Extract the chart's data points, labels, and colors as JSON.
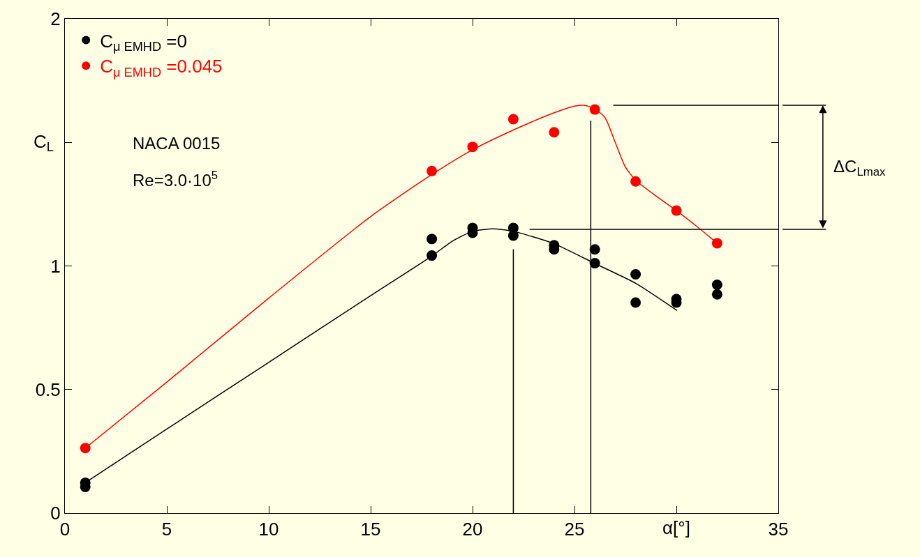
{
  "chart_data": {
    "type": "scatter",
    "xlabel": "α[°]",
    "ylabel": "C$_{L}$",
    "xlim": [
      0,
      35
    ],
    "xticks": [
      0,
      5,
      10,
      15,
      20,
      25,
      {
        "value": 30,
        "label": null
      },
      35
    ],
    "ylim": [
      0,
      2
    ],
    "yticks": [
      0,
      0.5,
      1,
      {
        "value": 1.5,
        "label": null
      },
      2
    ],
    "grid": false,
    "legend": "top left",
    "marker": "circle",
    "line_style": "solid",
    "series": [
      {
        "type": "line",
        "marker": "none",
        "color": "#000000",
        "x": [
          1,
          5,
          10,
          15,
          18,
          19,
          20,
          21,
          22,
          24,
          26,
          28,
          30.03
        ],
        "values": [
          0.123,
          0.34,
          0.61,
          0.88,
          1.04,
          1.1,
          1.14,
          1.15,
          1.14,
          1.09,
          1.01,
          0.93,
          0.82
        ]
      },
      {
        "type": "line",
        "marker": "none",
        "color": "#ff0000",
        "x": [
          1,
          5,
          10,
          15,
          18,
          20,
          22,
          24,
          25,
          25.5,
          26,
          26.5,
          27,
          27.5,
          28,
          29,
          30,
          31,
          32
        ],
        "values": [
          0.263,
          0.53,
          0.87,
          1.2,
          1.37,
          1.47,
          1.55,
          1.62,
          1.647,
          1.65,
          1.636,
          1.6,
          1.5,
          1.4,
          1.347,
          1.283,
          1.224,
          1.16,
          1.092
        ]
      },
      {
        "type": "line",
        "marker": "none",
        "color": "#000000",
        "x": [
          22,
          22
        ],
        "values": [
          0,
          1.067
        ]
      },
      {
        "type": "line",
        "marker": "none",
        "color": "#000000",
        "x": [
          25.8,
          25.8
        ],
        "values": [
          0,
          1.588
        ]
      },
      {
        "type": "line",
        "marker": "none",
        "color": "#000000",
        "x": [
          22.8,
          35
        ],
        "values": [
          1.148,
          1.148
        ]
      },
      {
        "type": "line",
        "marker": "none",
        "color": "#000000",
        "x": [
          26.9,
          35
        ],
        "values": [
          1.65,
          1.65
        ]
      },
      {
        "name": "C$_{μ EMHD}$ =0",
        "color": "#000000",
        "x": [
          1,
          1,
          18,
          18,
          20,
          20,
          22,
          22,
          24,
          24,
          26,
          26,
          28,
          28,
          30,
          30,
          32,
          32
        ],
        "values": [
          0.123,
          0.106,
          1.109,
          1.042,
          1.154,
          1.134,
          1.154,
          1.123,
          1.084,
          1.067,
          1.067,
          1.011,
          0.966,
          0.852,
          0.866,
          0.852,
          0.924,
          0.885
        ]
      },
      {
        "name": "C$_{μ EMHD}$ =0.045",
        "color": "#ff0000",
        "x": [
          1,
          18,
          20,
          22,
          24,
          26,
          28,
          30,
          32
        ],
        "values": [
          0.263,
          1.384,
          1.482,
          1.594,
          1.541,
          1.633,
          1.342,
          1.224,
          1.092
        ]
      }
    ],
    "annotations": [
      "NACA 0015",
      "Re=3.0·10$^{5}$",
      "ΔC$_{Lmax}$"
    ]
  }
}
